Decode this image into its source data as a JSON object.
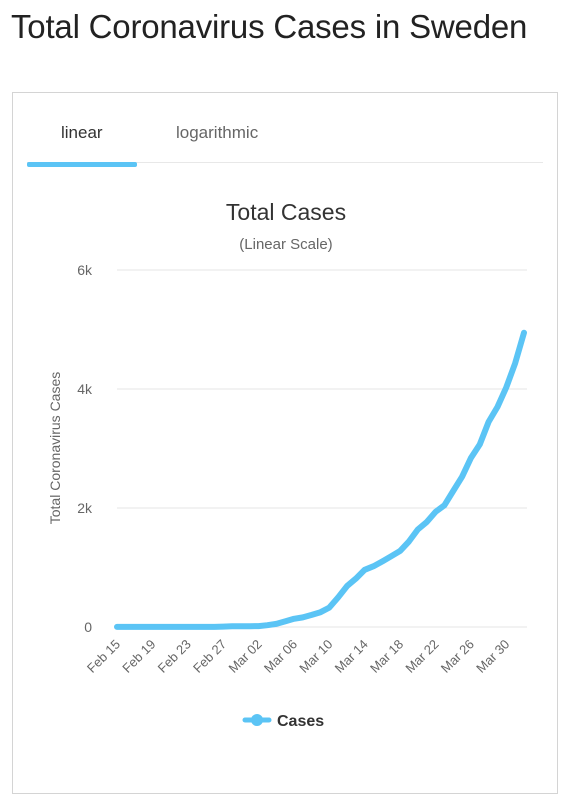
{
  "page": {
    "title": "Total Coronavirus Cases in Sweden"
  },
  "tabs": [
    {
      "label": "linear",
      "active": true
    },
    {
      "label": "logarithmic",
      "active": false
    }
  ],
  "colors": {
    "accent": "#5bc4f5",
    "series": "#5bc4f5",
    "grid": "#e6e6e6"
  },
  "chart_data": {
    "type": "line",
    "title": "Total Cases",
    "subtitle": "(Linear Scale)",
    "ylabel": "Total Coronavirus Cases",
    "xlabel": "",
    "ylim": [
      0,
      6000
    ],
    "yticks": [
      0,
      2000,
      4000,
      6000
    ],
    "ytick_labels": [
      "0",
      "2k",
      "4k",
      "6k"
    ],
    "xtick_labels": [
      "Feb 15",
      "Feb 19",
      "Feb 23",
      "Feb 27",
      "Mar 02",
      "Mar 06",
      "Mar 10",
      "Mar 14",
      "Mar 18",
      "Mar 22",
      "Mar 26",
      "Mar 30"
    ],
    "grid": true,
    "legend_position": "bottom",
    "x": [
      "Feb 15",
      "Feb 16",
      "Feb 17",
      "Feb 18",
      "Feb 19",
      "Feb 20",
      "Feb 21",
      "Feb 22",
      "Feb 23",
      "Feb 24",
      "Feb 25",
      "Feb 26",
      "Feb 27",
      "Feb 28",
      "Feb 29",
      "Mar 01",
      "Mar 02",
      "Mar 03",
      "Mar 04",
      "Mar 05",
      "Mar 06",
      "Mar 07",
      "Mar 08",
      "Mar 09",
      "Mar 10",
      "Mar 11",
      "Mar 12",
      "Mar 13",
      "Mar 14",
      "Mar 15",
      "Mar 16",
      "Mar 17",
      "Mar 18",
      "Mar 19",
      "Mar 20",
      "Mar 21",
      "Mar 22",
      "Mar 23",
      "Mar 24",
      "Mar 25",
      "Mar 26",
      "Mar 27",
      "Mar 28",
      "Mar 29",
      "Mar 30",
      "Mar 31",
      "Apr 01"
    ],
    "series": [
      {
        "name": "Cases",
        "values": [
          1,
          1,
          1,
          1,
          1,
          1,
          1,
          1,
          1,
          1,
          2,
          2,
          7,
          12,
          13,
          14,
          15,
          30,
          52,
          94,
          137,
          161,
          203,
          248,
          326,
          500,
          687,
          814,
          961,
          1022,
          1103,
          1190,
          1279,
          1439,
          1639,
          1763,
          1934,
          2046,
          2286,
          2526,
          2840,
          3069,
          3447,
          3700,
          4028,
          4435,
          4947
        ]
      }
    ]
  }
}
